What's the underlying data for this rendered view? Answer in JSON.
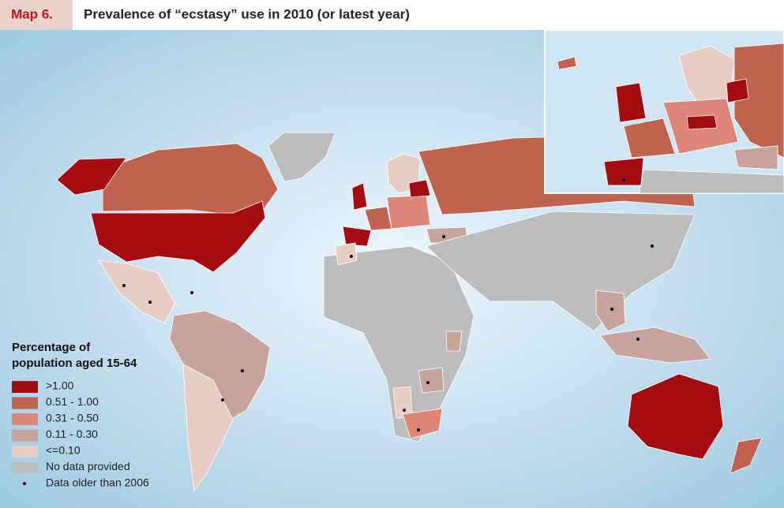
{
  "header": {
    "label": "Map 6.",
    "title": "Prevalence of “ecstasy” use in 2010 (or latest year)"
  },
  "legend": {
    "title_lines": [
      "Percentage of",
      "population aged 15-64"
    ],
    "items": [
      {
        "label": ">1.00",
        "color": "#a30d12"
      },
      {
        "label": "0.51 - 1.00",
        "color": "#c0634e"
      },
      {
        "label": "0.31 - 0.50",
        "color": "#dd8678"
      },
      {
        "label": "0.11 - 0.30",
        "color": "#c8a39c"
      },
      {
        "label": "<=0.10",
        "color": "#e8cdc7"
      },
      {
        "label": "No data provided",
        "color": "#bdbdbd"
      }
    ],
    "note": "Data older than 2006"
  }
}
